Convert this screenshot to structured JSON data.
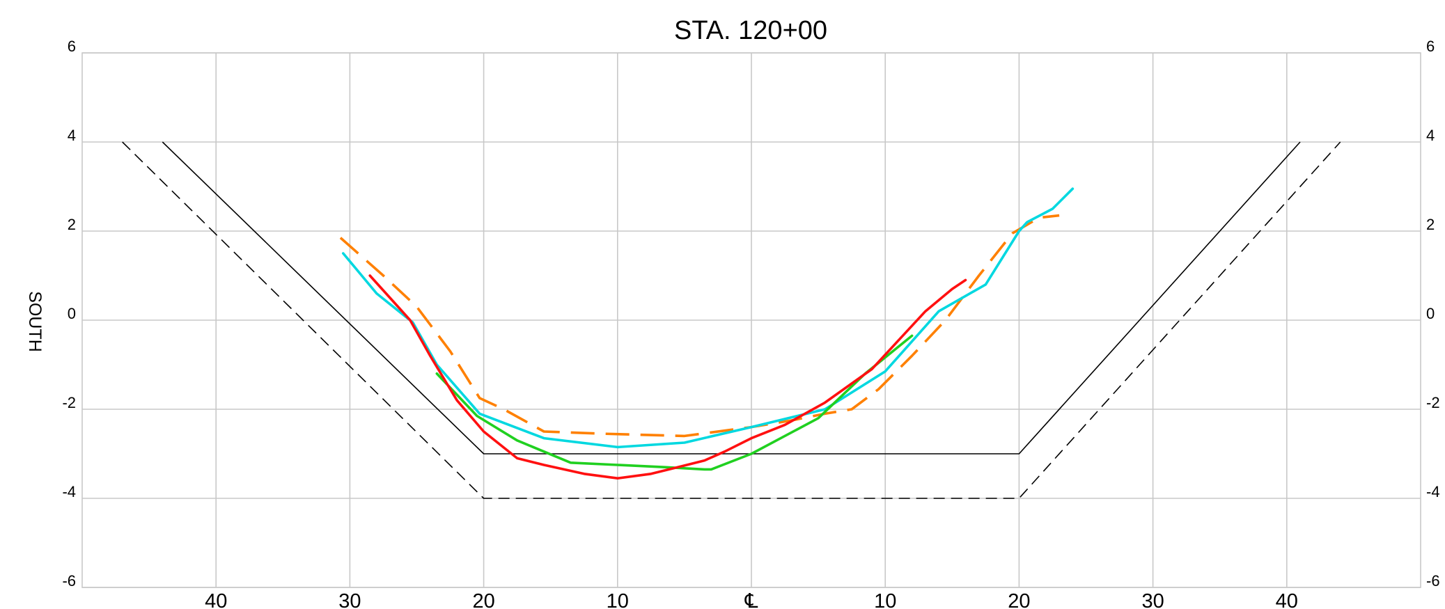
{
  "chart_data": {
    "type": "line",
    "title": "STA. 120+00",
    "ylabel": "SOUTH",
    "xlim": [
      -50,
      50
    ],
    "ylim": [
      -6,
      6
    ],
    "grid": true,
    "y_ticks": [
      6,
      4,
      2,
      0,
      -2,
      -4,
      -6
    ],
    "y_tick_labels": [
      "6",
      "4",
      "2",
      "0",
      "-2",
      "-4",
      "-6"
    ],
    "x_ticks": [
      -40,
      -30,
      -20,
      -10,
      0,
      10,
      20,
      30,
      40
    ],
    "x_tick_labels": [
      "40",
      "30",
      "20",
      "10",
      "℄",
      "10",
      "20",
      "30",
      "40"
    ],
    "series": [
      {
        "color": "#000000",
        "style": "solid",
        "x": [
          -44,
          -20,
          20,
          41
        ],
        "y": [
          4.0,
          -3.0,
          -3.0,
          4.0
        ]
      },
      {
        "color": "#000000",
        "style": "dashed",
        "x": [
          -47,
          -20,
          20,
          44
        ],
        "y": [
          4.0,
          -4.0,
          -4.0,
          4.0
        ]
      },
      {
        "color": "#ff8000",
        "style": "dashed",
        "x": [
          -30.7,
          -27.5,
          -25.0,
          -22.5,
          -20.3,
          -18.5,
          -15.5,
          -11.0,
          -5.0,
          0.0,
          3.0,
          5.5,
          7.5,
          9.5,
          12.0,
          14.5,
          17.0,
          19.5,
          21.5,
          23.0
        ],
        "y": [
          1.85,
          1.0,
          0.3,
          -0.7,
          -1.75,
          -2.0,
          -2.5,
          -2.55,
          -2.6,
          -2.4,
          -2.25,
          -2.1,
          -2.0,
          -1.55,
          -0.8,
          0.0,
          1.0,
          1.95,
          2.3,
          2.35
        ]
      },
      {
        "color": "#00d8e0",
        "style": "solid",
        "x": [
          -30.5,
          -28.0,
          -25.3,
          -23.5,
          -20.3,
          -15.5,
          -10.0,
          -5.0,
          0.0,
          5.5,
          10.0,
          14.0,
          17.5,
          20.0,
          20.6,
          22.5,
          24.0
        ],
        "y": [
          1.5,
          0.6,
          -0.05,
          -1.0,
          -2.1,
          -2.65,
          -2.85,
          -2.75,
          -2.4,
          -2.0,
          -1.15,
          0.2,
          0.8,
          2.0,
          2.2,
          2.5,
          2.95
        ]
      },
      {
        "color": "#20d020",
        "style": "solid",
        "x": [
          -23.5,
          -20.5,
          -17.5,
          -13.5,
          -10.0,
          -6.5,
          -3.5,
          -3.0,
          0.0,
          5.0,
          8.5,
          12.0
        ],
        "y": [
          -1.2,
          -2.15,
          -2.7,
          -3.2,
          -3.25,
          -3.3,
          -3.35,
          -3.35,
          -3.0,
          -2.2,
          -1.2,
          -0.35
        ]
      },
      {
        "color": "#ff1010",
        "style": "solid",
        "x": [
          -28.5,
          -27.0,
          -25.5,
          -24.0,
          -22.0,
          -20.0,
          -17.5,
          -15.5,
          -12.5,
          -10.0,
          -7.5,
          -5.5,
          -3.5,
          -2.0,
          0.0,
          2.5,
          5.5,
          9.0,
          11.0,
          13.0,
          15.0,
          16.0
        ],
        "y": [
          1.0,
          0.5,
          0.0,
          -0.8,
          -1.8,
          -2.5,
          -3.1,
          -3.25,
          -3.45,
          -3.55,
          -3.45,
          -3.3,
          -3.15,
          -2.95,
          -2.65,
          -2.35,
          -1.85,
          -1.1,
          -0.45,
          0.2,
          0.7,
          0.9
        ]
      }
    ]
  }
}
